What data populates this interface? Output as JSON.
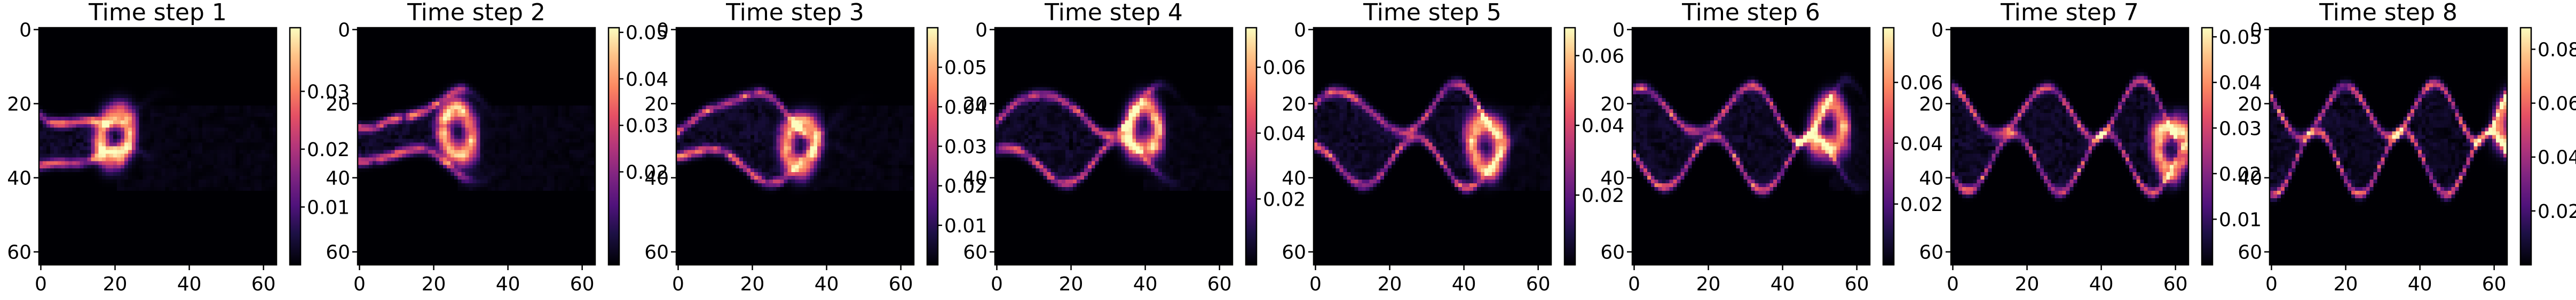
{
  "figure": {
    "colormap": "magma",
    "colors": {
      "low": "#000004",
      "high": "#fcfdbf"
    }
  },
  "chart_data": [
    {
      "type": "heatmap",
      "title": "Time step 1",
      "grid_size": 64,
      "x_ticks": [
        "0",
        "20",
        "40",
        "60"
      ],
      "y_ticks": [
        "0",
        "20",
        "40",
        "60"
      ],
      "colorbar": {
        "vmin": 0,
        "vmax": 0.041,
        "ticks": [
          "0.01",
          "0.02",
          "0.03"
        ],
        "tick_values": [
          0.01,
          0.02,
          0.03
        ]
      }
    },
    {
      "type": "heatmap",
      "title": "Time step 2",
      "grid_size": 64,
      "x_ticks": [
        "0",
        "20",
        "40",
        "60"
      ],
      "y_ticks": [
        "0",
        "20",
        "40",
        "60"
      ],
      "colorbar": {
        "vmin": 0,
        "vmax": 0.051,
        "ticks": [
          "0.02",
          "0.03",
          "0.04",
          "0.05"
        ],
        "tick_values": [
          0.02,
          0.03,
          0.04,
          0.05
        ]
      }
    },
    {
      "type": "heatmap",
      "title": "Time step 3",
      "grid_size": 64,
      "x_ticks": [
        "0",
        "20",
        "40",
        "60"
      ],
      "y_ticks": [
        "0",
        "20",
        "40",
        "60"
      ],
      "colorbar": {
        "vmin": 0,
        "vmax": 0.06,
        "ticks": [
          "0.01",
          "0.02",
          "0.03",
          "0.04",
          "0.05"
        ],
        "tick_values": [
          0.01,
          0.02,
          0.03,
          0.04,
          0.05
        ]
      }
    },
    {
      "type": "heatmap",
      "title": "Time step 4",
      "grid_size": 64,
      "x_ticks": [
        "0",
        "20",
        "40",
        "60"
      ],
      "y_ticks": [
        "0",
        "20",
        "40",
        "60"
      ],
      "colorbar": {
        "vmin": 0,
        "vmax": 0.072,
        "ticks": [
          "0.02",
          "0.04",
          "0.06"
        ],
        "tick_values": [
          0.02,
          0.04,
          0.06
        ]
      }
    },
    {
      "type": "heatmap",
      "title": "Time step 5",
      "grid_size": 64,
      "x_ticks": [
        "0",
        "20",
        "40",
        "60"
      ],
      "y_ticks": [
        "0",
        "20",
        "40",
        "60"
      ],
      "colorbar": {
        "vmin": 0,
        "vmax": 0.068,
        "ticks": [
          "0.02",
          "0.04",
          "0.06"
        ],
        "tick_values": [
          0.02,
          0.04,
          0.06
        ]
      }
    },
    {
      "type": "heatmap",
      "title": "Time step 6",
      "grid_size": 64,
      "x_ticks": [
        "0",
        "20",
        "40",
        "60"
      ],
      "y_ticks": [
        "0",
        "20",
        "40",
        "60"
      ],
      "colorbar": {
        "vmin": 0,
        "vmax": 0.078,
        "ticks": [
          "0.02",
          "0.04",
          "0.06"
        ],
        "tick_values": [
          0.02,
          0.04,
          0.06
        ]
      }
    },
    {
      "type": "heatmap",
      "title": "Time step 7",
      "grid_size": 64,
      "x_ticks": [
        "0",
        "20",
        "40",
        "60"
      ],
      "y_ticks": [
        "0",
        "20",
        "40",
        "60"
      ],
      "colorbar": {
        "vmin": 0,
        "vmax": 0.052,
        "ticks": [
          "0.01",
          "0.02",
          "0.03",
          "0.04",
          "0.05"
        ],
        "tick_values": [
          0.01,
          0.02,
          0.03,
          0.04,
          0.05
        ]
      }
    },
    {
      "type": "heatmap",
      "title": "Time step 8",
      "grid_size": 64,
      "x_ticks": [
        "0",
        "20",
        "40",
        "60"
      ],
      "y_ticks": [
        "0",
        "20",
        "40",
        "60"
      ],
      "colorbar": {
        "vmin": 0,
        "vmax": 0.088,
        "ticks": [
          "0.02",
          "0.04",
          "0.06",
          "0.08"
        ],
        "tick_values": [
          0.02,
          0.04,
          0.06,
          0.08
        ]
      }
    }
  ]
}
